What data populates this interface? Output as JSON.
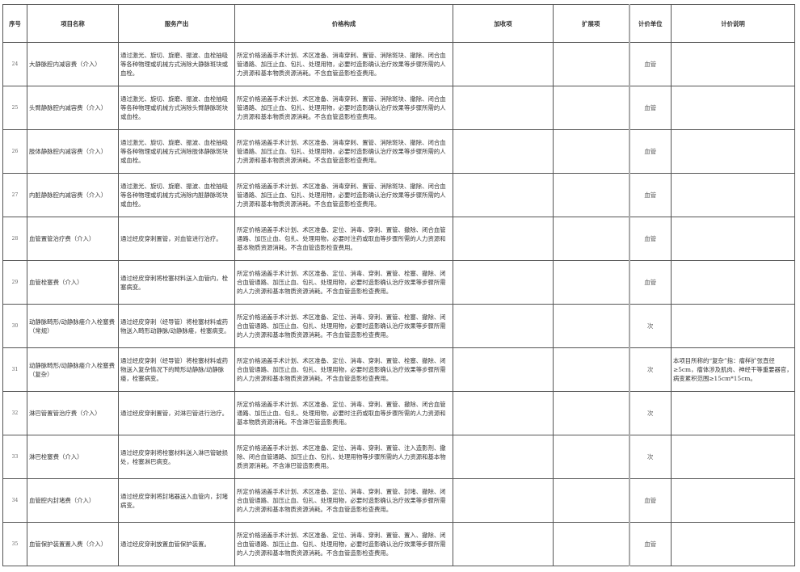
{
  "headers": [
    "序号",
    "项目名称",
    "服务产出",
    "价格构成",
    "加收项",
    "扩展项",
    "计价单位",
    "计价说明"
  ],
  "rows": [
    {
      "no": "24",
      "name": "大静脉腔内减容费（介入）",
      "output": "通过激光、旋切、旋磨、振波、血栓抽吸等各种物理或机械方式消除大静脉斑块或血栓。",
      "price": "所定价格涵盖手术计划、术区准备、消毒穿刺、置管、消除斑块、撤除、闭合血管通路、加压止血、包扎、处理用物，必要时造影确认治疗效果等步骤所需的人力资源和基本物质资源消耗。不含血管造影检查费用。",
      "extra": "",
      "ext": "",
      "unit": "血管",
      "note": ""
    },
    {
      "no": "25",
      "name": "头臂静脉腔内减容费（介入）",
      "output": "通过激光、旋切、旋磨、振波、血栓抽吸等各种物理或机械方式消除头臂静脉斑块或血栓。",
      "price": "所定价格涵盖手术计划、术区准备、消毒穿刺、置管、消除斑块、撤除、闭合血管通路、加压止血、包扎、处理用物，必要时造影确认治疗效果等步骤所需的人力资源和基本物质资源消耗。不含血管造影检查费用。",
      "extra": "",
      "ext": "",
      "unit": "血管",
      "note": ""
    },
    {
      "no": "26",
      "name": "肢体静脉腔内减容费（介入）",
      "output": "通过激光、旋切、旋磨、振波、血栓抽吸等各种物理或机械方式消除肢体静脉斑块或血栓。",
      "price": "所定价格涵盖手术计划、术区准备、消毒穿刺、置管、消除斑块、撤除、闭合血管通路、加压止血、包扎、处理用物，必要时造影确认治疗效果等步骤所需的人力资源和基本物质资源消耗。不含血管造影检查费用。",
      "extra": "",
      "ext": "",
      "unit": "血管",
      "note": ""
    },
    {
      "no": "27",
      "name": "内脏静脉腔内减容费（介入）",
      "output": "通过激光、旋切、旋磨、振波、血栓抽吸等各种物理或机械方式消除内脏静脉斑块或血栓。",
      "price": "所定价格涵盖手术计划、术区准备、消毒穿刺、置管、消除斑块、撤除、闭合血管通路、加压止血、包扎、处理用物，必要时造影确认治疗效果等步骤所需的人力资源和基本物质资源消耗。不含血管造影检查费用。",
      "extra": "",
      "ext": "",
      "unit": "血管",
      "note": ""
    },
    {
      "no": "28",
      "name": "血管置管治疗费（介入）",
      "output": "通过经皮穿刺置管，对血管进行治疗。",
      "price": "所定价格涵盖手术计划、术区准备、定位、消毒、穿刺、置管、撤除、闭合血管通路、加压止血、包扎、处理用物，必要时注药或取血等步骤所需的人力资源和基本物质资源消耗。不含血管造影检查费用。",
      "extra": "",
      "ext": "",
      "unit": "血管",
      "note": ""
    },
    {
      "no": "29",
      "name": "血管栓塞费（介入）",
      "output": "通过经皮穿刺将栓塞材料送入血管内，栓塞病变。",
      "price": "所定价格涵盖手术计划、术区准备、定位、消毒、穿刺、置管、栓塞、撤除、闭合血管通路、加压止血、包扎、处理用物，必要时造影确认治疗效果等步骤所需的人力资源和基本物质资源消耗。不含血管造影检查费用。",
      "extra": "",
      "ext": "",
      "unit": "血管",
      "note": ""
    },
    {
      "no": "30",
      "name": "动静脉畸形/动静脉瘘介入栓塞费（常规）",
      "output": "通过经皮穿刺（经导管）将栓塞材料或药物送入畸形动静脉/动静脉瘘，栓塞病变。",
      "price": "所定价格涵盖手术计划、术区准备、定位、消毒、穿刺、置管、栓塞、撤除、闭合血管通路、加压止血、包扎、处理用物，必要时造影确认治疗效果等步骤所需的人力资源和基本物质资源消耗。不含血管造影检查费用。",
      "extra": "",
      "ext": "",
      "unit": "次",
      "note": ""
    },
    {
      "no": "31",
      "name": "动静脉畸形/动静脉瘘介入栓塞费（复杂）",
      "output": "通过经皮穿刺（经导管）将栓塞材料或药物送入复杂情况下的畸形动静脉/动静脉瘘，栓塞病变。",
      "price": "所定价格涵盖手术计划、术区准备、定位、消毒、穿刺、置管、栓塞、撤除、闭合血管通路、加压止血、包扎、处理用物，必要时造影确认治疗效果等步骤所需的人力资源和基本物质资源消耗。不含血管造影检查费用。",
      "extra": "",
      "ext": "",
      "unit": "次",
      "note": "本项目所称的“复杂”指：瘤样扩张直径≥5cm，瘤体涉及肌肉、神经干等重要器官，病变累积范围≥15cm*15cm。"
    },
    {
      "no": "32",
      "name": "淋巴管置管治疗费（介入）",
      "output": "通过经皮穿刺置管，对淋巴管进行治疗。",
      "price": "所定价格涵盖手术计划、术区准备、定位、消毒、穿刺、置管、撤除、闭合血管通路、加压止血、包扎、处理用物，必要时注药或取血等步骤所需的人力资源和基本物质资源消耗。不含淋巴管造影费用。",
      "extra": "",
      "ext": "",
      "unit": "次",
      "note": ""
    },
    {
      "no": "33",
      "name": "淋巴栓塞费（介入）",
      "output": "通过经皮穿刺将栓塞材料送入淋巴管破损处，栓塞淋巴病变。",
      "price": "所定价格涵盖手术计划、术区准备、定位、消毒、穿刺、置管、注入造影剂、撤除、闭合血管通路、加压止血、包扎、处理用物等步骤所需的人力资源和基本物质资源消耗。不含淋巴管造影费用。",
      "extra": "",
      "ext": "",
      "unit": "次",
      "note": ""
    },
    {
      "no": "34",
      "name": "血管腔内封堵费（介入）",
      "output": "通过经皮穿刺将封堵器送入血管内，封堵病变。",
      "price": "所定价格涵盖手术计划、术区准备、定位、消毒、穿刺、置管、封堵、撤除、闭合血管通路、加压止血、包扎、处理用物，必要时造影确认治疗效果等步骤所需的人力资源和基本物质资源消耗。不含血管造影检查费用。",
      "extra": "",
      "ext": "",
      "unit": "血管",
      "note": ""
    },
    {
      "no": "35",
      "name": "血管保护装置置入费（介入）",
      "output": "通过经皮穿刺放置血管保护装置。",
      "price": "所定价格涵盖手术计划、术区准备、定位、消毒、穿刺、置管、置入、撤除、闭合血管通路、加压止血、包扎、处理用物，必要时造影确认治疗效果等步骤所需的人力资源和基本物质资源消耗。不含血管造影检查费用。",
      "extra": "",
      "ext": "",
      "unit": "血管",
      "note": ""
    }
  ]
}
